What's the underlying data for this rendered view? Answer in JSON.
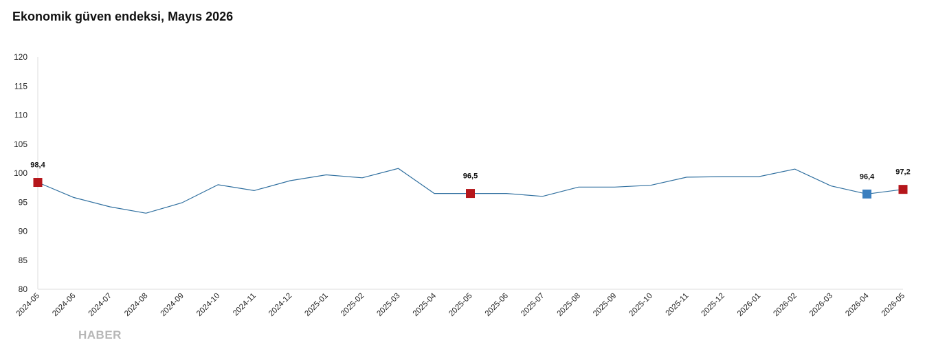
{
  "title": "Ekonomik güven endeksi, Mayıs 2026",
  "watermark": "HABER",
  "colors": {
    "line": "#2f6f9f",
    "marker_highlight": "#b5161b",
    "marker_current": "#3a7fbf",
    "axis": "#dddddd"
  },
  "chart_data": {
    "type": "line",
    "title": "Ekonomik güven endeksi, Mayıs 2026",
    "xlabel": "",
    "ylabel": "",
    "ylim": [
      80,
      120
    ],
    "yticks": [
      80,
      85,
      90,
      95,
      100,
      105,
      110,
      115,
      120
    ],
    "grid": false,
    "categories": [
      "2024-05",
      "2024-06",
      "2024-07",
      "2024-08",
      "2024-09",
      "2024-10",
      "2024-11",
      "2024-12",
      "2025-01",
      "2025-02",
      "2025-03",
      "2025-04",
      "2025-05",
      "2025-06",
      "2025-07",
      "2025-08",
      "2025-09",
      "2025-10",
      "2025-11",
      "2025-12",
      "2026-01",
      "2026-02",
      "2026-03",
      "2026-04",
      "2026-05"
    ],
    "series": [
      {
        "values": [
          98.4,
          95.8,
          94.2,
          93.1,
          94.9,
          98.0,
          97.0,
          98.7,
          99.7,
          99.2,
          100.8,
          96.5,
          96.5,
          96.5,
          96.0,
          97.6,
          97.6,
          97.9,
          99.3,
          99.4,
          99.4,
          100.7,
          97.8,
          96.4,
          97.2
        ]
      }
    ],
    "markers": [
      {
        "index": 0,
        "label": "98,4",
        "style": "highlight"
      },
      {
        "index": 12,
        "label": "96,5",
        "style": "highlight"
      },
      {
        "index": 23,
        "label": "96,4",
        "style": "current"
      },
      {
        "index": 24,
        "label": "97,2",
        "style": "highlight"
      }
    ]
  }
}
